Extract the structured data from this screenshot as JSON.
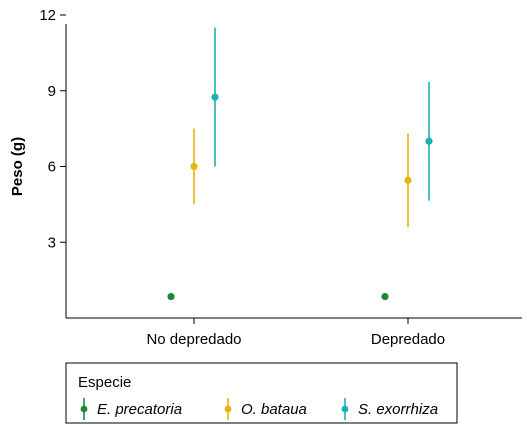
{
  "chart_data": {
    "type": "scatter",
    "ylabel": "Peso (g)",
    "xlabel": "",
    "categories": [
      "No depredado",
      "Depredado"
    ],
    "ylim": [
      0,
      12
    ],
    "yticks": [
      3,
      6,
      9,
      12
    ],
    "series": [
      {
        "name": "E. precatoria",
        "color": "#1a8a3a",
        "values": [
          0.85,
          0.85
        ],
        "lower": [
          null,
          null
        ],
        "upper": [
          null,
          null
        ]
      },
      {
        "name": "O. bataua",
        "color": "#e8b30c",
        "values": [
          6.0,
          5.45
        ],
        "lower": [
          4.5,
          3.6
        ],
        "upper": [
          7.5,
          7.3
        ]
      },
      {
        "name": "S. exorrhiza",
        "color": "#1ab0b8",
        "values": [
          8.75,
          7.0
        ],
        "lower": [
          6.0,
          4.65
        ],
        "upper": [
          11.5,
          9.35
        ]
      }
    ],
    "legend": {
      "title": "Especie",
      "placement": "bottom"
    }
  }
}
